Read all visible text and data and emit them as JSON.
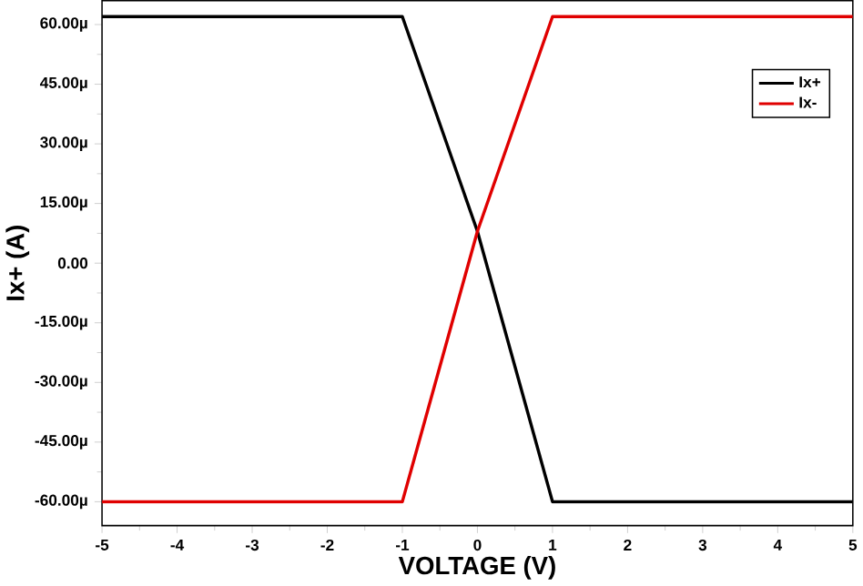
{
  "chart_data": {
    "type": "line",
    "xlabel": "VOLTAGE (V)",
    "ylabel": "Ix+ (A)",
    "x": [
      -5,
      -1,
      0,
      1,
      5
    ],
    "series": [
      {
        "name": "Ix+",
        "color": "#000000",
        "values": [
          62,
          62,
          8,
          -60,
          -60
        ]
      },
      {
        "name": "Ix-",
        "color": "#e00000",
        "values": [
          -60,
          -60,
          8,
          62,
          62
        ]
      }
    ],
    "xlim": [
      -5,
      5
    ],
    "xticks": [
      -5,
      -4,
      -3,
      -2,
      -1,
      0,
      1,
      2,
      3,
      4,
      5
    ],
    "ylim": [
      -66,
      66
    ],
    "yticks": [
      {
        "value": -60,
        "label": "-60.00µ"
      },
      {
        "value": -45,
        "label": "-45.00µ"
      },
      {
        "value": -30,
        "label": "-30.00µ"
      },
      {
        "value": -15,
        "label": "-15.00µ"
      },
      {
        "value": 0,
        "label": "0.00"
      },
      {
        "value": 15,
        "label": "15.00µ"
      },
      {
        "value": 30,
        "label": "30.00µ"
      },
      {
        "value": 45,
        "label": "45.00µ"
      },
      {
        "value": 60,
        "label": "60.00µ"
      }
    ],
    "legend": "top right",
    "grid": false,
    "marker": "none",
    "line_style": "solid"
  }
}
